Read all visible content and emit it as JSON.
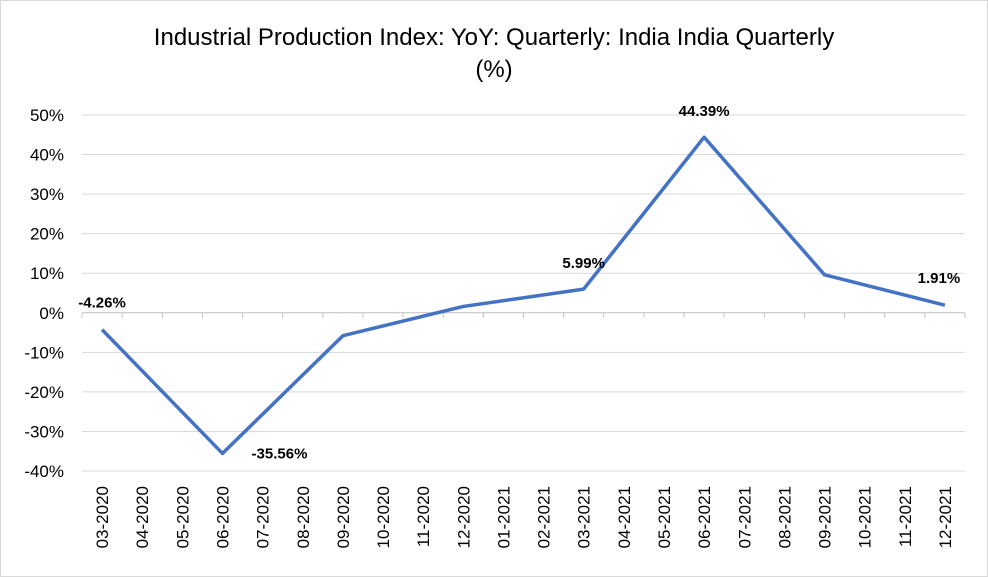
{
  "chart_data": {
    "type": "line",
    "title_line1": "Industrial Production Index: YoY: Quarterly: India India Quarterly",
    "title_line2": "(%)",
    "categories": [
      "03-2020",
      "04-2020",
      "05-2020",
      "06-2020",
      "07-2020",
      "08-2020",
      "09-2020",
      "10-2020",
      "11-2020",
      "12-2020",
      "01-2021",
      "02-2021",
      "03-2021",
      "04-2021",
      "05-2021",
      "06-2021",
      "07-2021",
      "08-2021",
      "09-2021",
      "10-2021",
      "11-2021",
      "12-2021"
    ],
    "series": [
      {
        "points": [
          {
            "x": "03-2020",
            "y": -4.26
          },
          {
            "x": "06-2020",
            "y": -35.56
          },
          {
            "x": "09-2020",
            "y": -5.8
          },
          {
            "x": "12-2020",
            "y": 1.6
          },
          {
            "x": "03-2021",
            "y": 5.99
          },
          {
            "x": "06-2021",
            "y": 44.39
          },
          {
            "x": "09-2021",
            "y": 9.6
          },
          {
            "x": "12-2021",
            "y": 1.91
          }
        ],
        "color": "#4472c4"
      }
    ],
    "data_labels": [
      {
        "x": "03-2020",
        "text": "-4.26%"
      },
      {
        "x": "06-2020",
        "text": "-35.56%"
      },
      {
        "x": "03-2021",
        "text": "5.99%"
      },
      {
        "x": "06-2021",
        "text": "44.39%"
      },
      {
        "x": "12-2021",
        "text": "1.91%"
      }
    ],
    "y_ticks": [
      "50%",
      "40%",
      "30%",
      "20%",
      "10%",
      "0%",
      "-10%",
      "-20%",
      "-30%",
      "-40%"
    ],
    "ylim": [
      -40,
      50
    ],
    "grid": true,
    "legend": "none"
  }
}
